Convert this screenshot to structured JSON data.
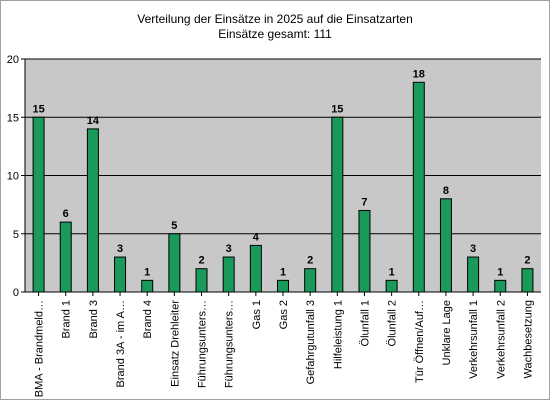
{
  "chart_data": {
    "type": "bar",
    "title": "Verteilung der Einsätze in 2025 auf die Einsatzarten",
    "subtitle": "Einsätze gesamt: 111",
    "categories": [
      "BMA - Brandmeld…",
      "Brand 1",
      "Brand 3",
      "Brand 3A - im A…",
      "Brand 4",
      "Einsatz Drehleiter",
      "Führungsunters…",
      "Führungsunters…",
      "Gas 1",
      "Gas 2",
      "Gefahrgutunfall 3",
      "Hilfeleistung 1",
      "Ölunfall 1",
      "Ölunfall 2",
      "Tür Öffnen/Auf…",
      "Unklare Lage",
      "Verkehrsunfall 1",
      "Verkehrsunfall 2",
      "Wachbesetzung"
    ],
    "values": [
      15,
      6,
      14,
      3,
      1,
      5,
      2,
      3,
      4,
      1,
      2,
      15,
      7,
      1,
      18,
      8,
      3,
      1,
      2
    ],
    "ylim": [
      0,
      20
    ],
    "yticks": [
      0,
      5,
      10,
      15,
      20
    ],
    "grid": true,
    "legend": "none",
    "colors": {
      "bar_fill": "#1a9a5a",
      "bar_stroke": "#000000",
      "plot_background": "#c8c8c8",
      "gridline": "#000000"
    }
  }
}
